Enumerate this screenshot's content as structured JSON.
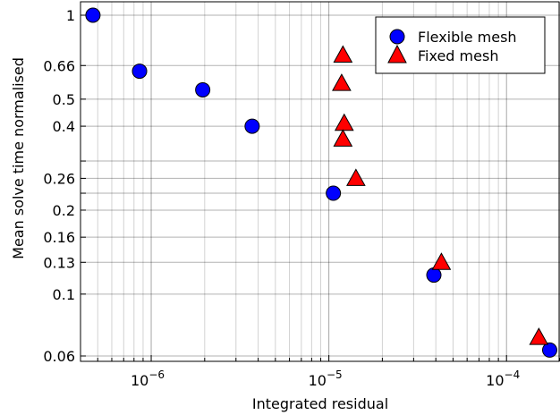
{
  "chart_data": {
    "type": "scatter",
    "xlabel": "Integrated residual",
    "ylabel": "Mean solve time normalised",
    "xscale": "log",
    "yscale": "log",
    "xlim": [
      4e-07,
      0.0002
    ],
    "ylim": [
      0.06,
      1.0
    ],
    "grid": true,
    "legend_position": "top-right",
    "x_ticks": [
      {
        "value": 1e-06,
        "base": "10",
        "exp": "−6"
      },
      {
        "value": 1e-05,
        "base": "10",
        "exp": "−5"
      },
      {
        "value": 0.0001,
        "base": "10",
        "exp": "−4"
      }
    ],
    "y_ticks": [
      {
        "value": 1.0,
        "label": "1"
      },
      {
        "value": 0.66,
        "label": "0.66"
      },
      {
        "value": 0.5,
        "label": "0.5"
      },
      {
        "value": 0.4,
        "label": "0.4"
      },
      {
        "value": 0.3,
        "label": ""
      },
      {
        "value": 0.26,
        "label": "0.26"
      },
      {
        "value": 0.23,
        "label": ""
      },
      {
        "value": 0.2,
        "label": "0.2"
      },
      {
        "value": 0.16,
        "label": "0.16"
      },
      {
        "value": 0.13,
        "label": "0.13"
      },
      {
        "value": 0.1,
        "label": "0.1"
      },
      {
        "value": 0.06,
        "label": "0.06"
      }
    ],
    "series": [
      {
        "name": "Flexible mesh",
        "marker": "circle",
        "color": "#0000ff",
        "points": [
          {
            "x": 4.7e-07,
            "y": 1.0
          },
          {
            "x": 8.6e-07,
            "y": 0.63
          },
          {
            "x": 1.95e-06,
            "y": 0.54
          },
          {
            "x": 3.7e-06,
            "y": 0.4
          },
          {
            "x": 1.06e-05,
            "y": 0.23
          },
          {
            "x": 3.9e-05,
            "y": 0.117
          },
          {
            "x": 0.000175,
            "y": 0.063
          }
        ]
      },
      {
        "name": "Fixed mesh",
        "marker": "triangle",
        "color": "#ff0000",
        "points": [
          {
            "x": 1.2e-05,
            "y": 0.72
          },
          {
            "x": 1.18e-05,
            "y": 0.57
          },
          {
            "x": 1.22e-05,
            "y": 0.41
          },
          {
            "x": 1.2e-05,
            "y": 0.36
          },
          {
            "x": 1.42e-05,
            "y": 0.26
          },
          {
            "x": 4.3e-05,
            "y": 0.13
          },
          {
            "x": 0.000152,
            "y": 0.07
          }
        ]
      }
    ]
  }
}
